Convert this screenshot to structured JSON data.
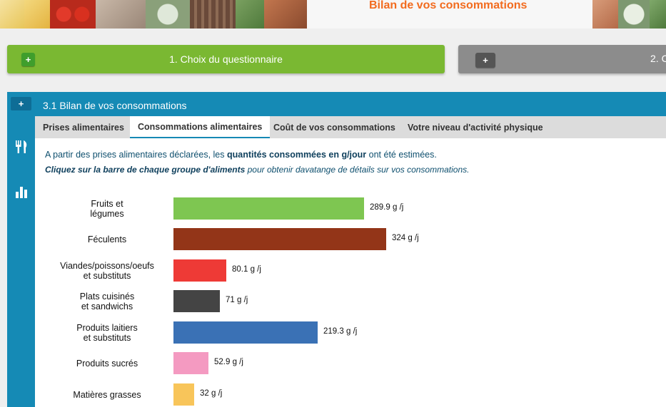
{
  "banner": {
    "title": "Bilan de vos consommations"
  },
  "steps": [
    {
      "label": "1. Choix du questionnaire",
      "plus": "+"
    },
    {
      "label": "2. C",
      "plus": "+"
    }
  ],
  "panel": {
    "plus": "+",
    "header": "3.1 Bilan de vos consommations",
    "tabs": [
      {
        "label": "Prises alimentaires"
      },
      {
        "label": "Consommations alimentaires"
      },
      {
        "label": "Coût de vos consommations"
      },
      {
        "label": "Votre niveau d'activité physique"
      }
    ],
    "intro": {
      "line1_pre": "A partir des prises alimentaires déclarées, les ",
      "line1_bold": "quantités consommées en g/jour",
      "line1_post": " ont été estimées.",
      "line2_bold": "Cliquez sur la barre de chaque groupe d'aliments",
      "line2_post": " pour obtenir davatange de détails sur vos consommations."
    },
    "icons": [
      "fork-knife-icon",
      "bar-chart-icon"
    ]
  },
  "chart_data": {
    "type": "bar",
    "orientation": "horizontal",
    "categories": [
      "Fruits et\nlégumes",
      "Féculents",
      "Viandes/poissons/oeufs\net substituts",
      "Plats cuisinés\net sandwichs",
      "Produits laitiers\net substituts",
      "Produits sucrés",
      "Matières grasses"
    ],
    "values": [
      289.9,
      324,
      80.1,
      71,
      219.3,
      52.9,
      32
    ],
    "value_labels": [
      "289.9 g /j",
      "324 g /j",
      "80.1 g /j",
      "71 g /j",
      "219.3 g /j",
      "52.9 g /j",
      "32 g /j"
    ],
    "colors": [
      "#7ec651",
      "#933518",
      "#ee3a36",
      "#444444",
      "#3a71b5",
      "#f49ac1",
      "#f8c55a"
    ],
    "unit": "g /j"
  }
}
